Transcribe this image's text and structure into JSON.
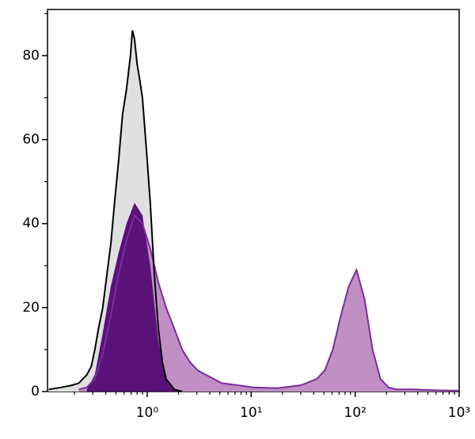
{
  "chart_data": {
    "type": "histogram_overlay",
    "xscale": "log",
    "xlim": [
      0.11,
      1000
    ],
    "ylim": [
      0,
      91
    ],
    "xticks": [
      {
        "value": 1,
        "label": "10⁰"
      },
      {
        "value": 10,
        "label": "10¹"
      },
      {
        "value": 100,
        "label": "10²"
      },
      {
        "value": 1000,
        "label": "10³"
      }
    ],
    "xminorticks": [
      0.2,
      0.3,
      0.4,
      0.5,
      0.6,
      0.7,
      0.8,
      0.9,
      2,
      3,
      4,
      5,
      6,
      7,
      8,
      9,
      20,
      30,
      40,
      50,
      60,
      70,
      80,
      90,
      200,
      300,
      400,
      500,
      600,
      700,
      800,
      900
    ],
    "yticks": [
      0,
      20,
      40,
      60,
      80
    ],
    "yminorticks": [
      10,
      30,
      50,
      70,
      90
    ],
    "series": [
      {
        "color": "#e0e0e0",
        "line_color": "#000000",
        "x": [
          0.113,
          0.15,
          0.19,
          0.22,
          0.263,
          0.29,
          0.314,
          0.34,
          0.374,
          0.41,
          0.446,
          0.49,
          0.531,
          0.58,
          0.633,
          0.69,
          0.72,
          0.755,
          0.8,
          0.85,
          0.9,
          0.98,
          1.07,
          1.17,
          1.28,
          1.4,
          1.52,
          1.82,
          2.17
        ],
        "values": [
          0.5,
          1,
          1.5,
          2,
          4,
          6,
          10,
          15,
          20,
          28,
          35,
          46,
          55,
          66,
          72,
          80,
          86,
          84,
          78,
          74,
          70,
          58,
          45,
          28,
          15,
          7,
          3,
          0.5,
          0
        ]
      },
      {
        "color": "#c08fc3",
        "line_color": "#7b2d9b",
        "x": [
          0.22,
          0.263,
          0.314,
          0.374,
          0.446,
          0.531,
          0.633,
          0.755,
          0.9,
          1.07,
          1.28,
          1.52,
          1.82,
          2.17,
          2.58,
          3.08,
          3.67,
          4.38,
          5.2,
          7.4,
          10.5,
          17.8,
          30.1,
          42.7,
          51,
          61,
          72.6,
          86.6,
          103,
          123,
          147,
          175,
          209,
          249,
          354,
          595,
          982
        ],
        "values": [
          0.5,
          1,
          3,
          9,
          18,
          28,
          36,
          42,
          40,
          34,
          26,
          20,
          15,
          10,
          7,
          5,
          4,
          3,
          2,
          1.5,
          1,
          0.8,
          1.5,
          3,
          5,
          10,
          18,
          25,
          29,
          22,
          10,
          3,
          1,
          0.5,
          0.5,
          0.3,
          0.2
        ]
      },
      {
        "color": "#5a1178",
        "line_color": null,
        "x": [
          0.263,
          0.314,
          0.374,
          0.446,
          0.531,
          0.633,
          0.755,
          0.9,
          1.07,
          1.28,
          1.52,
          1.82,
          2.17
        ],
        "values": [
          0.5,
          4,
          14,
          25,
          33,
          40,
          45,
          42,
          30,
          12,
          3,
          0.5,
          0
        ]
      }
    ]
  }
}
